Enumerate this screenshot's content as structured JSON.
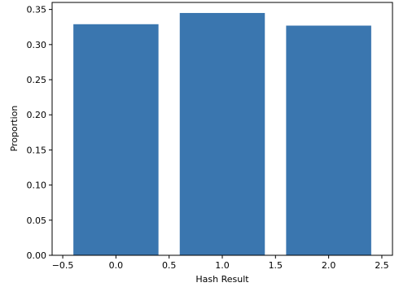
{
  "chart_data": {
    "type": "bar",
    "title": "",
    "xlabel": "Hash Result",
    "ylabel": "Proportion",
    "x": [
      0,
      1,
      2
    ],
    "values": [
      0.329,
      0.345,
      0.327
    ],
    "bar_width": 0.8,
    "xlim": [
      -0.6,
      2.6
    ],
    "ylim": [
      0,
      0.36
    ],
    "xticks": [
      -0.5,
      0.0,
      0.5,
      1.0,
      1.5,
      2.0,
      2.5
    ],
    "xtick_labels": [
      "−0.5",
      "0.0",
      "0.5",
      "1.0",
      "1.5",
      "2.0",
      "2.5"
    ],
    "yticks": [
      0,
      0.05,
      0.1,
      0.15,
      0.2,
      0.25,
      0.3,
      0.35
    ],
    "ytick_labels": [
      "0.00",
      "0.05",
      "0.10",
      "0.15",
      "0.20",
      "0.25",
      "0.30",
      "0.35"
    ],
    "bar_color": "#3a76af",
    "grid": false,
    "legend": "none"
  }
}
